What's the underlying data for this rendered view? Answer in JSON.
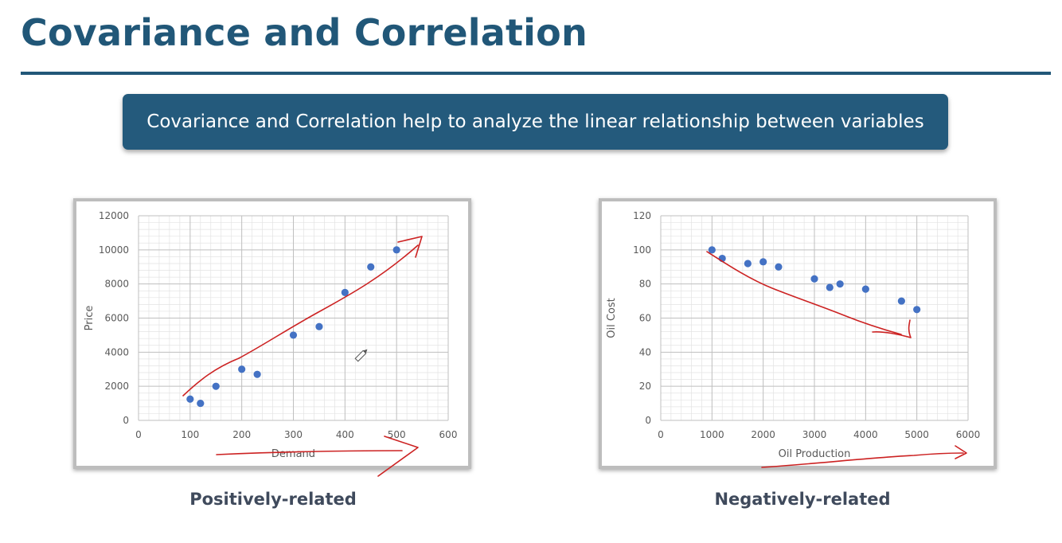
{
  "slide": {
    "title": "Covariance and Correlation",
    "banner": "Covariance and Correlation help to analyze the linear relationship between variables"
  },
  "captions": {
    "left": "Positively-related",
    "right": "Negatively-related"
  },
  "colors": {
    "title": "#215778",
    "banner_bg": "#245a7c",
    "marker": "#4472c4",
    "grid": "#d9d9d9",
    "annotation": "#cc2222"
  },
  "chart_data": [
    {
      "type": "scatter",
      "title": "",
      "xlabel": "Demand",
      "ylabel": "Price",
      "xlim": [
        0,
        600
      ],
      "ylim": [
        0,
        12000
      ],
      "x_ticks": [
        0,
        100,
        200,
        300,
        400,
        500,
        600
      ],
      "y_ticks": [
        0,
        2000,
        4000,
        6000,
        8000,
        10000,
        12000
      ],
      "x_minor_step": 20,
      "y_minor_step": 400,
      "grid": true,
      "x": [
        100,
        120,
        150,
        200,
        230,
        300,
        350,
        400,
        450,
        500
      ],
      "y": [
        1250,
        1000,
        2000,
        3000,
        2700,
        5000,
        5500,
        7500,
        9000,
        10000
      ]
    },
    {
      "type": "scatter",
      "title": "",
      "xlabel": "Oil Production",
      "ylabel": "Oil Cost",
      "xlim": [
        0,
        6000
      ],
      "ylim": [
        0,
        120
      ],
      "x_ticks": [
        0,
        1000,
        2000,
        3000,
        4000,
        5000,
        6000
      ],
      "y_ticks": [
        0,
        20,
        40,
        60,
        80,
        100,
        120
      ],
      "x_minor_step": 200,
      "y_minor_step": 4,
      "grid": true,
      "x": [
        1000,
        1200,
        1700,
        2000,
        2300,
        3000,
        3300,
        3500,
        4000,
        4700,
        5000
      ],
      "y": [
        100,
        95,
        92,
        93,
        90,
        83,
        78,
        80,
        77,
        70,
        65
      ]
    }
  ]
}
